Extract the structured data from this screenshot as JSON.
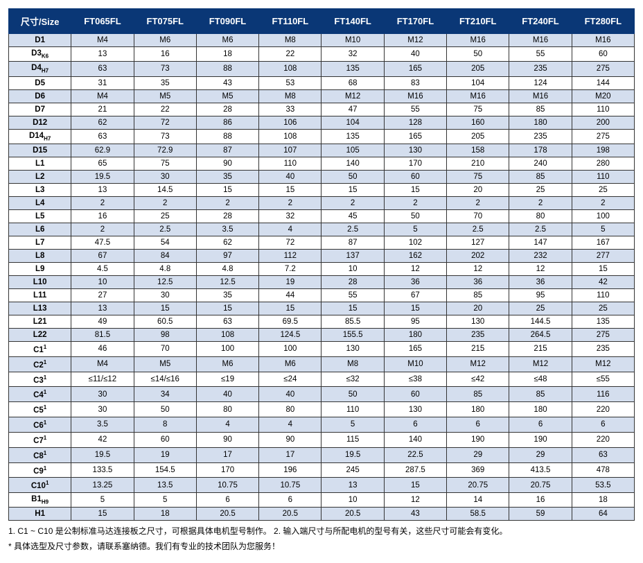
{
  "colors": {
    "header_bg": "#0a3776",
    "header_text": "#ffffff",
    "odd_row_bg": "#d4deee",
    "even_row_bg": "#ffffff",
    "border": "#333333",
    "text": "#000000"
  },
  "typography": {
    "header_fontsize": 13,
    "cell_fontsize": 11.5,
    "note_fontsize": 12
  },
  "table": {
    "type": "table",
    "columns": [
      "尺寸/Size",
      "FT065FL",
      "FT075FL",
      "FT090FL",
      "FT110FL",
      "FT140FL",
      "FT170FL",
      "FT210FL",
      "FT240FL",
      "FT280FL"
    ],
    "row_labels": [
      "D1",
      "D3<sub>K6</sub>",
      "D4<sub>H7</sub>",
      "D5",
      "D6",
      "D7",
      "D12",
      "D14<sub>H7</sub>",
      "D15",
      "L1",
      "L2",
      "L3",
      "L4",
      "L5",
      "L6",
      "L7",
      "L8",
      "L9",
      "L10",
      "L11",
      "L13",
      "L21",
      "L22",
      "C1<sup>1</sup>",
      "C2<sup>1</sup>",
      "C3<sup>1</sup>",
      "C4<sup>1</sup>",
      "C5<sup>1</sup>",
      "C6<sup>1</sup>",
      "C7<sup>1</sup>",
      "C8<sup>1</sup>",
      "C9<sup>1</sup>",
      "C10<sup>1</sup>",
      "B1<sub>H9</sub>",
      "H1"
    ],
    "rows": [
      [
        "M4",
        "M6",
        "M6",
        "M8",
        "M10",
        "M12",
        "M16",
        "M16",
        "M16"
      ],
      [
        "13",
        "16",
        "18",
        "22",
        "32",
        "40",
        "50",
        "55",
        "60"
      ],
      [
        "63",
        "73",
        "88",
        "108",
        "135",
        "165",
        "205",
        "235",
        "275"
      ],
      [
        "31",
        "35",
        "43",
        "53",
        "68",
        "83",
        "104",
        "124",
        "144"
      ],
      [
        "M4",
        "M5",
        "M5",
        "M8",
        "M12",
        "M16",
        "M16",
        "M16",
        "M20"
      ],
      [
        "21",
        "22",
        "28",
        "33",
        "47",
        "55",
        "75",
        "85",
        "110"
      ],
      [
        "62",
        "72",
        "86",
        "106",
        "104",
        "128",
        "160",
        "180",
        "200"
      ],
      [
        "63",
        "73",
        "88",
        "108",
        "135",
        "165",
        "205",
        "235",
        "275"
      ],
      [
        "62.9",
        "72.9",
        "87",
        "107",
        "105",
        "130",
        "158",
        "178",
        "198"
      ],
      [
        "65",
        "75",
        "90",
        "110",
        "140",
        "170",
        "210",
        "240",
        "280"
      ],
      [
        "19.5",
        "30",
        "35",
        "40",
        "50",
        "60",
        "75",
        "85",
        "110"
      ],
      [
        "13",
        "14.5",
        "15",
        "15",
        "15",
        "15",
        "20",
        "25",
        "25"
      ],
      [
        "2",
        "2",
        "2",
        "2",
        "2",
        "2",
        "2",
        "2",
        "2"
      ],
      [
        "16",
        "25",
        "28",
        "32",
        "45",
        "50",
        "70",
        "80",
        "100"
      ],
      [
        "2",
        "2.5",
        "3.5",
        "4",
        "2.5",
        "5",
        "2.5",
        "2.5",
        "5"
      ],
      [
        "47.5",
        "54",
        "62",
        "72",
        "87",
        "102",
        "127",
        "147",
        "167"
      ],
      [
        "67",
        "84",
        "97",
        "112",
        "137",
        "162",
        "202",
        "232",
        "277"
      ],
      [
        "4.5",
        "4.8",
        "4.8",
        "7.2",
        "10",
        "12",
        "12",
        "12",
        "15"
      ],
      [
        "10",
        "12.5",
        "12.5",
        "19",
        "28",
        "36",
        "36",
        "36",
        "42"
      ],
      [
        "27",
        "30",
        "35",
        "44",
        "55",
        "67",
        "85",
        "95",
        "110"
      ],
      [
        "13",
        "15",
        "15",
        "15",
        "15",
        "15",
        "20",
        "25",
        "25"
      ],
      [
        "49",
        "60.5",
        "63",
        "69.5",
        "85.5",
        "95",
        "130",
        "144.5",
        "135"
      ],
      [
        "81.5",
        "98",
        "108",
        "124.5",
        "155.5",
        "180",
        "235",
        "264.5",
        "275"
      ],
      [
        "46",
        "70",
        "100",
        "100",
        "130",
        "165",
        "215",
        "215",
        "235"
      ],
      [
        "M4",
        "M5",
        "M6",
        "M6",
        "M8",
        "M10",
        "M12",
        "M12",
        "M12"
      ],
      [
        "≤11/≤12",
        "≤14/≤16",
        "≤19",
        "≤24",
        "≤32",
        "≤38",
        "≤42",
        "≤48",
        "≤55"
      ],
      [
        "30",
        "34",
        "40",
        "40",
        "50",
        "60",
        "85",
        "85",
        "116"
      ],
      [
        "30",
        "50",
        "80",
        "80",
        "110",
        "130",
        "180",
        "180",
        "220"
      ],
      [
        "3.5",
        "8",
        "4",
        "4",
        "5",
        "6",
        "6",
        "6",
        "6"
      ],
      [
        "42",
        "60",
        "90",
        "90",
        "115",
        "140",
        "190",
        "190",
        "220"
      ],
      [
        "19.5",
        "19",
        "17",
        "17",
        "19.5",
        "22.5",
        "29",
        "29",
        "63"
      ],
      [
        "133.5",
        "154.5",
        "170",
        "196",
        "245",
        "287.5",
        "369",
        "413.5",
        "478"
      ],
      [
        "13.25",
        "13.5",
        "10.75",
        "10.75",
        "13",
        "15",
        "20.75",
        "20.75",
        "53.5"
      ],
      [
        "5",
        "5",
        "6",
        "6",
        "10",
        "12",
        "14",
        "16",
        "18"
      ],
      [
        "15",
        "18",
        "20.5",
        "20.5",
        "20.5",
        "43",
        "58.5",
        "59",
        "64"
      ]
    ]
  },
  "notes": {
    "line1": "1. C1 ~ C10 是公制标准马达连接板之尺寸，可根据具体电机型号制作。 2. 输入端尺寸与所配电机的型号有关，这些尺寸可能会有变化。",
    "line2": "* 具体选型及尺寸参数，请联系塞纳德。我们有专业的技术团队为您服务！"
  }
}
